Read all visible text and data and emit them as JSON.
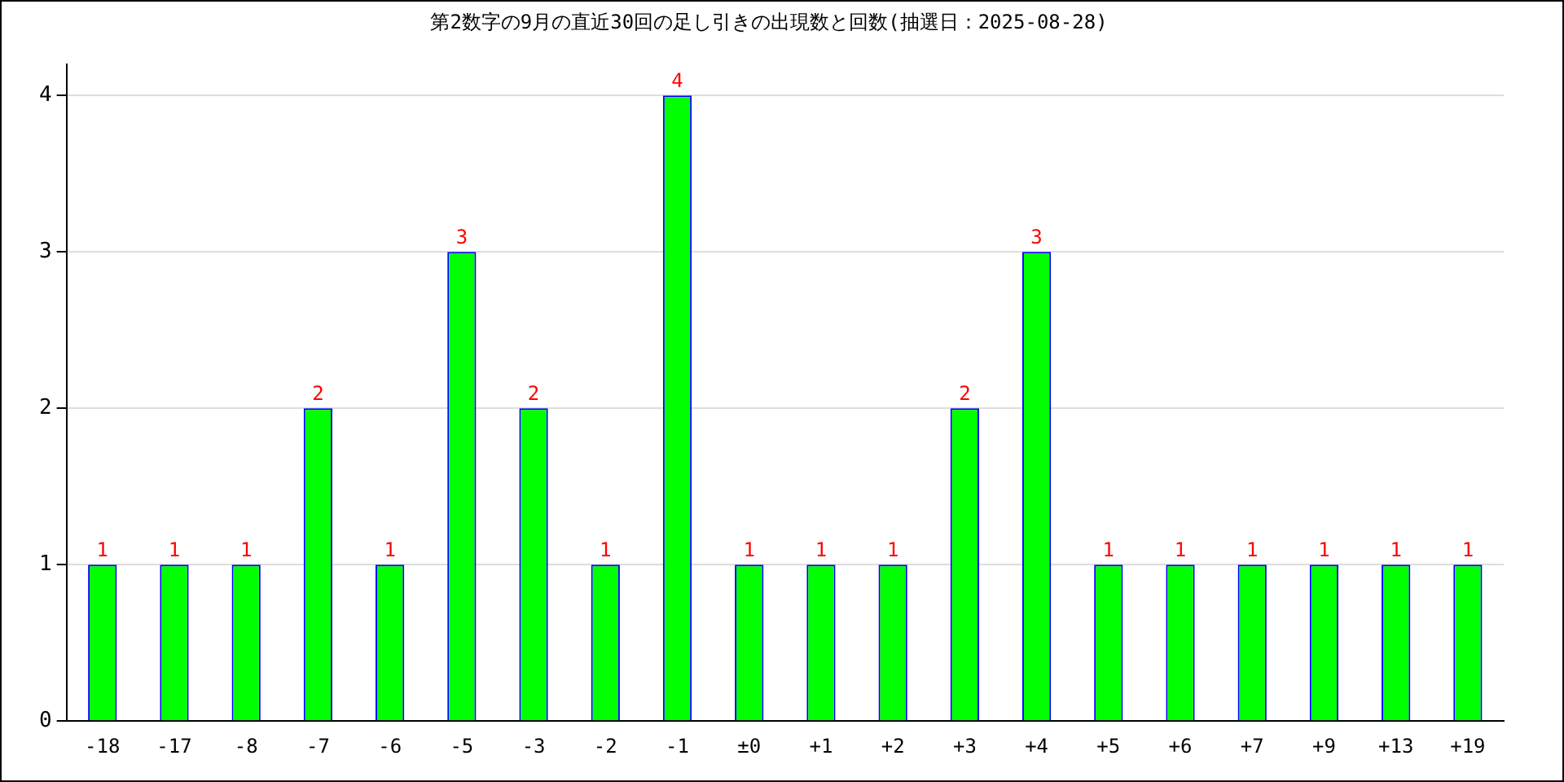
{
  "chart_data": {
    "type": "bar",
    "title": "第2数字の9月の直近30回の足し引きの出現数と回数(抽選日：2025-08-28)",
    "categories": [
      "-18",
      "-17",
      "-8",
      "-7",
      "-6",
      "-5",
      "-3",
      "-2",
      "-1",
      "±0",
      "+1",
      "+2",
      "+3",
      "+4",
      "+5",
      "+6",
      "+7",
      "+9",
      "+13",
      "+19"
    ],
    "values": [
      1,
      1,
      1,
      2,
      1,
      3,
      2,
      1,
      4,
      1,
      1,
      1,
      2,
      3,
      1,
      1,
      1,
      1,
      1,
      1
    ],
    "color": "#00ff00",
    "ylim": [
      0,
      4.2
    ],
    "yticks": [
      0,
      1,
      2,
      3,
      4
    ],
    "grid": "y",
    "legend": false,
    "data_labels": true
  }
}
